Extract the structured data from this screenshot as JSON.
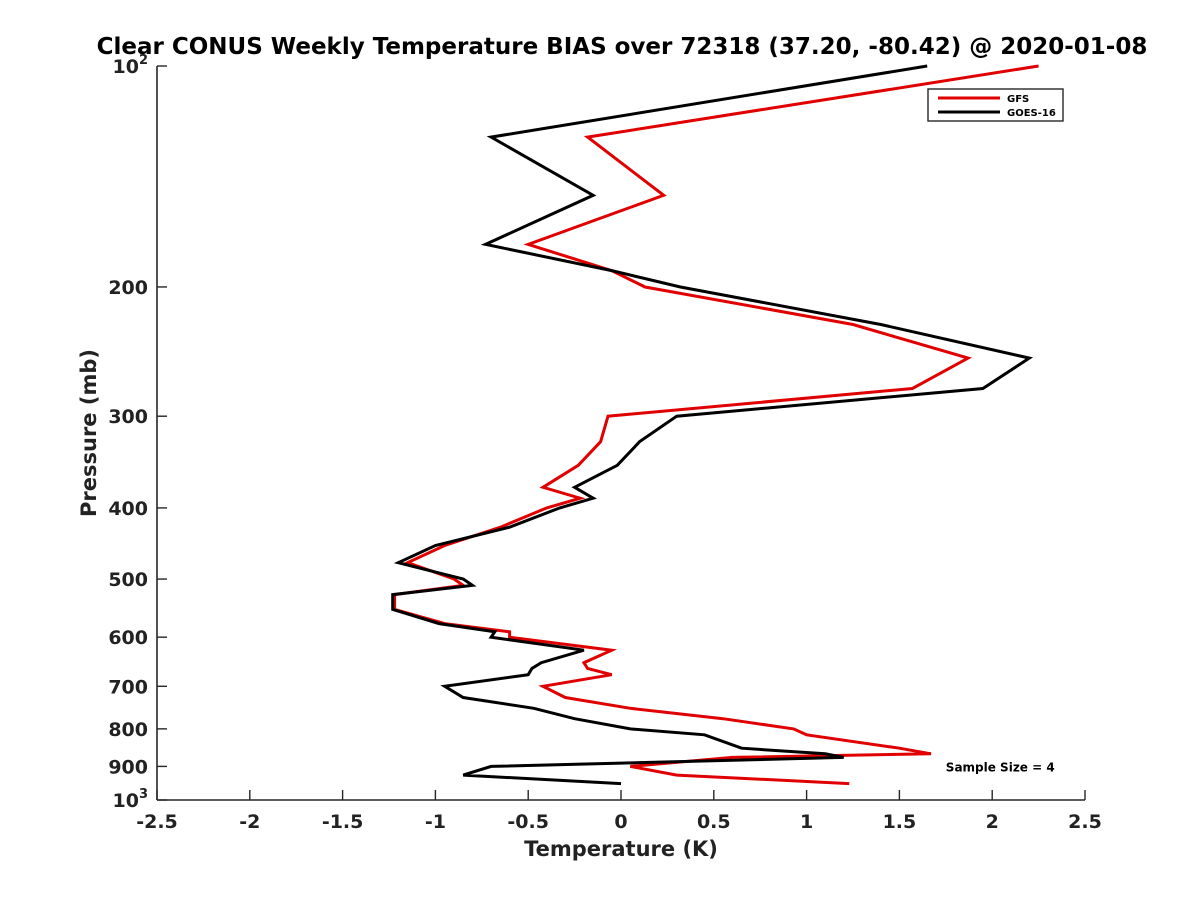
{
  "chart_data": {
    "type": "line",
    "title": "Clear CONUS Weekly Temperature BIAS over 72318 (37.20, -80.42) @ 2020-01-08",
    "xlabel": "Temperature (K)",
    "ylabel": "Pressure (mb)",
    "xlim": [
      -2.5,
      2.5
    ],
    "ylim": [
      100,
      1000
    ],
    "y_scale": "log",
    "y_reversed": true,
    "grid": false,
    "legend_position": "top-right",
    "x_ticks": [
      -2.5,
      -2,
      -1.5,
      -1,
      -0.5,
      0,
      0.5,
      1,
      1.5,
      2,
      2.5
    ],
    "x_tick_labels": [
      "-2.5",
      "-2",
      "-1.5",
      "-1",
      "-0.5",
      "0",
      "0.5",
      "1",
      "1.5",
      "2",
      "2.5"
    ],
    "y_ticks": [
      {
        "value": 100,
        "base": "10",
        "exp": "2"
      },
      {
        "value": 200,
        "base": "200",
        "exp": ""
      },
      {
        "value": 300,
        "base": "300",
        "exp": ""
      },
      {
        "value": 400,
        "base": "400",
        "exp": ""
      },
      {
        "value": 500,
        "base": "500",
        "exp": ""
      },
      {
        "value": 600,
        "base": "600",
        "exp": ""
      },
      {
        "value": 700,
        "base": "700",
        "exp": ""
      },
      {
        "value": 800,
        "base": "800",
        "exp": ""
      },
      {
        "value": 900,
        "base": "900",
        "exp": ""
      },
      {
        "value": 1000,
        "base": "10",
        "exp": "3"
      }
    ],
    "series": [
      {
        "name": "GFS",
        "color": "#e00000",
        "points": [
          [
            2.25,
            100
          ],
          [
            -0.18,
            125
          ],
          [
            0.23,
            150
          ],
          [
            -0.5,
            175
          ],
          [
            -0.05,
            190
          ],
          [
            0.13,
            200
          ],
          [
            1.25,
            225
          ],
          [
            1.87,
            250
          ],
          [
            1.57,
            275
          ],
          [
            -0.07,
            300
          ],
          [
            -0.11,
            325
          ],
          [
            -0.23,
            350
          ],
          [
            -0.42,
            375
          ],
          [
            -0.22,
            388
          ],
          [
            -0.4,
            400
          ],
          [
            -0.65,
            425
          ],
          [
            -0.95,
            450
          ],
          [
            -1.15,
            475
          ],
          [
            -0.9,
            500
          ],
          [
            -0.85,
            510
          ],
          [
            -1.22,
            525
          ],
          [
            -1.22,
            550
          ],
          [
            -0.95,
            575
          ],
          [
            -0.6,
            590
          ],
          [
            -0.6,
            600
          ],
          [
            -0.05,
            625
          ],
          [
            -0.2,
            650
          ],
          [
            -0.18,
            662
          ],
          [
            -0.05,
            675
          ],
          [
            -0.42,
            700
          ],
          [
            -0.3,
            725
          ],
          [
            0.05,
            750
          ],
          [
            0.55,
            775
          ],
          [
            0.93,
            800
          ],
          [
            1.0,
            815
          ],
          [
            1.5,
            850
          ],
          [
            1.67,
            865
          ],
          [
            0.6,
            875
          ],
          [
            0.05,
            900
          ],
          [
            0.3,
            925
          ],
          [
            1.23,
            950
          ]
        ]
      },
      {
        "name": "GOES-16",
        "color": "#000000",
        "points": [
          [
            1.65,
            100
          ],
          [
            -0.7,
            125
          ],
          [
            -0.15,
            150
          ],
          [
            -0.73,
            175
          ],
          [
            -0.05,
            190
          ],
          [
            0.32,
            200
          ],
          [
            1.4,
            225
          ],
          [
            2.2,
            250
          ],
          [
            1.95,
            275
          ],
          [
            0.3,
            300
          ],
          [
            0.1,
            325
          ],
          [
            -0.02,
            350
          ],
          [
            -0.25,
            375
          ],
          [
            -0.15,
            388
          ],
          [
            -0.33,
            400
          ],
          [
            -0.6,
            425
          ],
          [
            -1.0,
            450
          ],
          [
            -1.2,
            475
          ],
          [
            -0.85,
            500
          ],
          [
            -0.8,
            510
          ],
          [
            -1.23,
            525
          ],
          [
            -1.23,
            550
          ],
          [
            -0.98,
            575
          ],
          [
            -0.68,
            590
          ],
          [
            -0.7,
            600
          ],
          [
            -0.2,
            625
          ],
          [
            -0.43,
            650
          ],
          [
            -0.48,
            662
          ],
          [
            -0.5,
            675
          ],
          [
            -0.95,
            700
          ],
          [
            -0.85,
            725
          ],
          [
            -0.47,
            750
          ],
          [
            -0.25,
            775
          ],
          [
            0.05,
            800
          ],
          [
            0.45,
            815
          ],
          [
            0.65,
            850
          ],
          [
            1.1,
            865
          ],
          [
            1.2,
            875
          ],
          [
            -0.7,
            900
          ],
          [
            -0.85,
            925
          ],
          [
            0.0,
            950
          ]
        ]
      }
    ],
    "annotations": [
      {
        "text": "Sample Size = 4",
        "x": 1.75,
        "y": 900
      }
    ]
  }
}
